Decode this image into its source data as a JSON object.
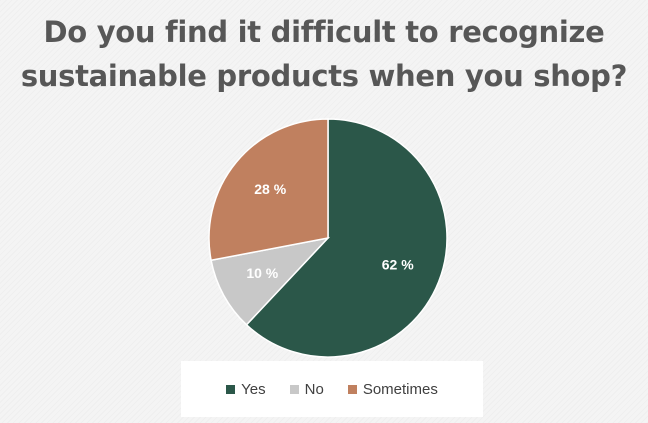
{
  "chart_data": {
    "type": "pie",
    "title_lines": [
      "Do you find it difficult to recognize",
      "sustainable products when you shop?"
    ],
    "categories": [
      "Yes",
      "No",
      "Sometimes"
    ],
    "values": [
      62,
      10,
      28
    ],
    "data_labels": [
      "62 %",
      "10 %",
      "28 %"
    ],
    "colors": [
      "#2b5749",
      "#c8c8c8",
      "#c0805f"
    ],
    "label_colors": [
      "#ffffff",
      "#ffffff",
      "#ffffff"
    ],
    "legend_position": "bottom",
    "start_angle": "12 o'clock, clockwise"
  }
}
